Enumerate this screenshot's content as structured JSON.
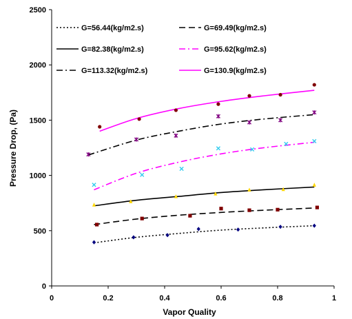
{
  "chart_data": {
    "type": "line",
    "title": "",
    "xlabel": "Vapor Quality",
    "ylabel": "Pressure Drop, (Pa)",
    "xlim": [
      0,
      1
    ],
    "ylim": [
      0,
      2500
    ],
    "x_ticks": [
      {
        "value": 0,
        "label": "0"
      },
      {
        "value": 0.2,
        "label": "0.2"
      },
      {
        "value": 0.4,
        "label": "0.4"
      },
      {
        "value": 0.6,
        "label": "0.6"
      },
      {
        "value": 0.8,
        "label": "0.8"
      },
      {
        "value": 1,
        "label": "1"
      }
    ],
    "y_ticks": [
      {
        "value": 0,
        "label": "0"
      },
      {
        "value": 500,
        "label": "500"
      },
      {
        "value": 1000,
        "label": "1000"
      },
      {
        "value": 1500,
        "label": "1500"
      },
      {
        "value": 2000,
        "label": "2000"
      },
      {
        "value": 2500,
        "label": "2500"
      }
    ],
    "grid": false,
    "legend_position": "top-left, inside plot",
    "series": [
      {
        "name": "G=56.44(kg/m2.s)",
        "color": "#000000",
        "dash": "dotted",
        "marker": "diamond",
        "marker_color": "#000080",
        "points": [
          [
            0.15,
            395
          ],
          [
            0.29,
            440
          ],
          [
            0.41,
            460
          ],
          [
            0.52,
            515
          ],
          [
            0.66,
            510
          ],
          [
            0.81,
            535
          ],
          [
            0.93,
            545
          ]
        ],
        "fit": [
          [
            0.15,
            390
          ],
          [
            0.3,
            440
          ],
          [
            0.45,
            475
          ],
          [
            0.6,
            505
          ],
          [
            0.75,
            525
          ],
          [
            0.93,
            545
          ]
        ]
      },
      {
        "name": "G=69.49(kg/m2.s)",
        "color": "#000000",
        "dash": "dashed",
        "marker": "square",
        "marker_color": "#800000",
        "points": [
          [
            0.16,
            555
          ],
          [
            0.32,
            610
          ],
          [
            0.49,
            635
          ],
          [
            0.6,
            700
          ],
          [
            0.7,
            685
          ],
          [
            0.8,
            690
          ],
          [
            0.94,
            710
          ]
        ],
        "fit": [
          [
            0.15,
            555
          ],
          [
            0.3,
            605
          ],
          [
            0.45,
            640
          ],
          [
            0.6,
            665
          ],
          [
            0.75,
            685
          ],
          [
            0.93,
            705
          ]
        ]
      },
      {
        "name": "G=82.38(kg/m2.s)",
        "color": "#000000",
        "dash": "solid",
        "marker": "triangle",
        "marker_color": "#ffd700",
        "points": [
          [
            0.15,
            735
          ],
          [
            0.28,
            765
          ],
          [
            0.44,
            810
          ],
          [
            0.58,
            835
          ],
          [
            0.7,
            870
          ],
          [
            0.82,
            875
          ],
          [
            0.93,
            915
          ]
        ],
        "fit": [
          [
            0.15,
            725
          ],
          [
            0.3,
            775
          ],
          [
            0.45,
            810
          ],
          [
            0.6,
            845
          ],
          [
            0.75,
            870
          ],
          [
            0.93,
            895
          ]
        ]
      },
      {
        "name": "G=95.62(kg/m2.s)",
        "color": "#ff00ff",
        "dash": "dash-dot",
        "marker": "x",
        "marker_color": "#33ccee",
        "points": [
          [
            0.15,
            915
          ],
          [
            0.32,
            1005
          ],
          [
            0.46,
            1060
          ],
          [
            0.59,
            1245
          ],
          [
            0.71,
            1235
          ],
          [
            0.83,
            1285
          ],
          [
            0.93,
            1310
          ]
        ],
        "fit": [
          [
            0.15,
            870
          ],
          [
            0.3,
            1020
          ],
          [
            0.45,
            1120
          ],
          [
            0.6,
            1195
          ],
          [
            0.75,
            1250
          ],
          [
            0.93,
            1300
          ]
        ]
      },
      {
        "name": "G=113.32(kg/m2.s)",
        "color": "#000000",
        "dash": "dash-dot",
        "marker": "star",
        "marker_color": "#800080",
        "points": [
          [
            0.13,
            1190
          ],
          [
            0.3,
            1325
          ],
          [
            0.44,
            1360
          ],
          [
            0.59,
            1535
          ],
          [
            0.7,
            1480
          ],
          [
            0.81,
            1500
          ],
          [
            0.93,
            1570
          ]
        ],
        "fit": [
          [
            0.13,
            1185
          ],
          [
            0.3,
            1320
          ],
          [
            0.45,
            1400
          ],
          [
            0.6,
            1465
          ],
          [
            0.75,
            1510
          ],
          [
            0.93,
            1550
          ]
        ]
      },
      {
        "name": "G=130.9(kg/m2.s)",
        "color": "#ff00ff",
        "dash": "solid",
        "marker": "circle",
        "marker_color": "#800000",
        "points": [
          [
            0.17,
            1440
          ],
          [
            0.31,
            1510
          ],
          [
            0.44,
            1590
          ],
          [
            0.59,
            1645
          ],
          [
            0.7,
            1720
          ],
          [
            0.81,
            1730
          ],
          [
            0.93,
            1820
          ]
        ],
        "fit": [
          [
            0.17,
            1400
          ],
          [
            0.3,
            1515
          ],
          [
            0.45,
            1605
          ],
          [
            0.6,
            1670
          ],
          [
            0.75,
            1720
          ],
          [
            0.93,
            1770
          ]
        ]
      }
    ]
  }
}
